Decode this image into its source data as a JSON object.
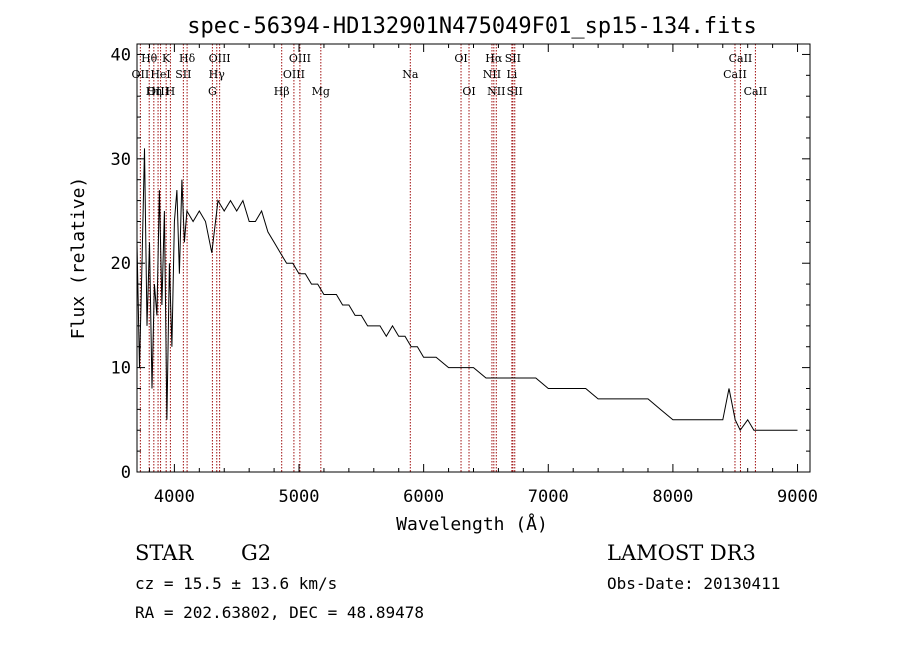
{
  "chart_data": {
    "type": "line",
    "title": "spec-56394-HD132901N475049F01_sp15-134.fits",
    "xlabel": "Wavelength (Å)",
    "ylabel": "Flux (relative)",
    "xlim": [
      3700,
      9100
    ],
    "ylim": [
      0,
      41
    ],
    "xticks": [
      4000,
      5000,
      6000,
      7000,
      8000,
      9000
    ],
    "yticks": [
      0,
      10,
      20,
      30,
      40
    ],
    "series": [
      {
        "name": "spectrum",
        "x": [
          3700,
          3720,
          3740,
          3760,
          3780,
          3800,
          3820,
          3840,
          3860,
          3880,
          3900,
          3920,
          3940,
          3960,
          3980,
          4000,
          4020,
          4040,
          4060,
          4080,
          4100,
          4150,
          4200,
          4250,
          4300,
          4350,
          4400,
          4450,
          4500,
          4550,
          4600,
          4650,
          4700,
          4750,
          4800,
          4850,
          4900,
          4950,
          5000,
          5050,
          5100,
          5150,
          5200,
          5250,
          5300,
          5350,
          5400,
          5450,
          5500,
          5550,
          5600,
          5650,
          5700,
          5750,
          5800,
          5850,
          5900,
          5950,
          6000,
          6100,
          6200,
          6300,
          6400,
          6500,
          6600,
          6700,
          6800,
          6900,
          7000,
          7100,
          7200,
          7300,
          7400,
          7500,
          7600,
          7700,
          7800,
          7900,
          8000,
          8100,
          8200,
          8300,
          8400,
          8450,
          8500,
          8540,
          8600,
          8650,
          8700,
          8800,
          8900,
          9000
        ],
        "values": [
          22,
          10,
          20,
          31,
          14,
          22,
          8,
          18,
          15,
          27,
          16,
          25,
          5,
          20,
          12,
          24,
          27,
          19,
          28,
          22,
          25,
          24,
          25,
          24,
          21,
          26,
          25,
          26,
          25,
          26,
          24,
          24,
          25,
          23,
          22,
          21,
          20,
          20,
          19,
          19,
          18,
          18,
          17,
          17,
          17,
          16,
          16,
          15,
          15,
          14,
          14,
          14,
          13,
          14,
          13,
          13,
          12,
          12,
          11,
          11,
          10,
          10,
          10,
          9,
          9,
          9,
          9,
          9,
          8,
          8,
          8,
          8,
          7,
          7,
          7,
          7,
          7,
          6,
          5,
          5,
          5,
          5,
          5,
          8,
          5,
          4,
          5,
          4,
          4,
          4,
          4,
          4
        ],
        "color": "#000000"
      }
    ],
    "lines": [
      {
        "label": "Hθ",
        "x": 3798,
        "row": 1
      },
      {
        "label": "OII",
        "x": 3727,
        "row": 2
      },
      {
        "label": "OIII",
        "x": 3869,
        "row": 3
      },
      {
        "label": "K",
        "x": 3934,
        "row": 1
      },
      {
        "label": "HeI",
        "x": 3889,
        "row": 2
      },
      {
        "label": "Hη",
        "x": 3835,
        "row": 3
      },
      {
        "label": "SII",
        "x": 4072,
        "row": 2
      },
      {
        "label": "H",
        "x": 3968,
        "row": 3
      },
      {
        "label": "Hδ",
        "x": 4102,
        "row": 1
      },
      {
        "label": "OIII",
        "x": 4363,
        "row": 1
      },
      {
        "label": "Hγ",
        "x": 4340,
        "row": 2
      },
      {
        "label": "G",
        "x": 4305,
        "row": 3
      },
      {
        "label": "Hβ",
        "x": 4861,
        "row": 3
      },
      {
        "label": "OIII",
        "x": 5007,
        "row": 1
      },
      {
        "label": "OIII",
        "x": 4959,
        "row": 2
      },
      {
        "label": "Mg",
        "x": 5175,
        "row": 3
      },
      {
        "label": "Na",
        "x": 5893,
        "row": 2
      },
      {
        "label": "OI",
        "x": 6300,
        "row": 1
      },
      {
        "label": "OI",
        "x": 6364,
        "row": 3
      },
      {
        "label": "Hα",
        "x": 6563,
        "row": 1
      },
      {
        "label": "NII",
        "x": 6548,
        "row": 2
      },
      {
        "label": "NII",
        "x": 6583,
        "row": 3
      },
      {
        "label": "SII",
        "x": 6716,
        "row": 1
      },
      {
        "label": "Li",
        "x": 6708,
        "row": 2
      },
      {
        "label": "SII",
        "x": 6731,
        "row": 3
      },
      {
        "label": "CaII",
        "x": 8542,
        "row": 1
      },
      {
        "label": "CaII",
        "x": 8498,
        "row": 2
      },
      {
        "label": "CaII",
        "x": 8662,
        "row": 3
      }
    ],
    "line_color": "#a01010"
  },
  "info": {
    "object_class": "STAR",
    "subclass": "G2",
    "survey": "LAMOST DR3",
    "cz": "cz = 15.5 ± 13.6 km/s",
    "obs_date": "Obs-Date: 20130411",
    "coords": "RA = 202.63802, DEC =  48.89478"
  }
}
